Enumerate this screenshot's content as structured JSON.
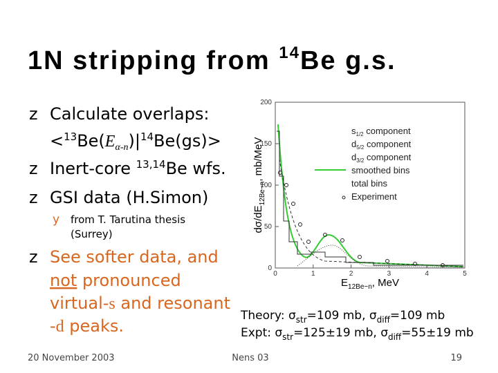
{
  "title": {
    "text": "1N stripping from ",
    "sup": "14",
    "rest": "Be g.s."
  },
  "bullets": [
    {
      "marker": "z",
      "text": "Calculate overlaps:",
      "line2": {
        "a": "<",
        "sup1": "13",
        "b": "Be(",
        "italic": "E",
        "sub": "α-n",
        "c": ")|",
        "sup2": "14",
        "d": "Be(gs)>"
      }
    },
    {
      "marker": "z",
      "a": "Inert-core ",
      "sup": "13,14",
      "b": "Be wfs."
    },
    {
      "marker": "z",
      "text": "GSI data (H.Simon)"
    },
    {
      "marker": "y",
      "lines": [
        "from T. Tarutina thesis",
        "(Surrey)"
      ]
    },
    {
      "marker": "z",
      "line1": "See softer data, and",
      "line2": {
        "u": "not",
        "rest": " pronounced"
      },
      "line3": {
        "a": "virtual-",
        "s": "s",
        "b": " and resonant"
      },
      "line4": {
        "a": "-",
        "d": "d",
        "b": " peaks."
      }
    }
  ],
  "figure": {
    "xticks": [
      "0",
      "1",
      "2",
      "3",
      "4",
      "5"
    ],
    "yticks": [
      "0",
      "50",
      "100",
      "150",
      "200"
    ],
    "xlabel": {
      "a": "E",
      "sub": "12Be−n",
      "b": ", MeV"
    },
    "ylabel": {
      "a": "dσ/dE",
      "sub": "12Be−n",
      "b": ", mb/MeV"
    },
    "legend": [
      {
        "a": "s",
        "sub": "1/2",
        "b": " component"
      },
      {
        "a": "d",
        "sub": "5/2",
        "b": " component"
      },
      {
        "a": "d",
        "sub": "3/2",
        "b": " component"
      },
      {
        "a": "smoothed bins"
      },
      {
        "a": "total bins"
      },
      {
        "a": "Experiment"
      }
    ]
  },
  "cross_sections": {
    "theory": {
      "a": "Theory: σ",
      "sub1": "str",
      "b": "=109 mb, σ",
      "sub2": "diff",
      "c": "=109 mb"
    },
    "expt": {
      "a": "Expt:  σ",
      "sub1": "str",
      "b": "=125±19 mb, σ",
      "sub2": "diff",
      "c": "=55±19 mb"
    }
  },
  "footer": {
    "date": "20 November 2003",
    "event": "Nens 03",
    "page": "19"
  }
}
